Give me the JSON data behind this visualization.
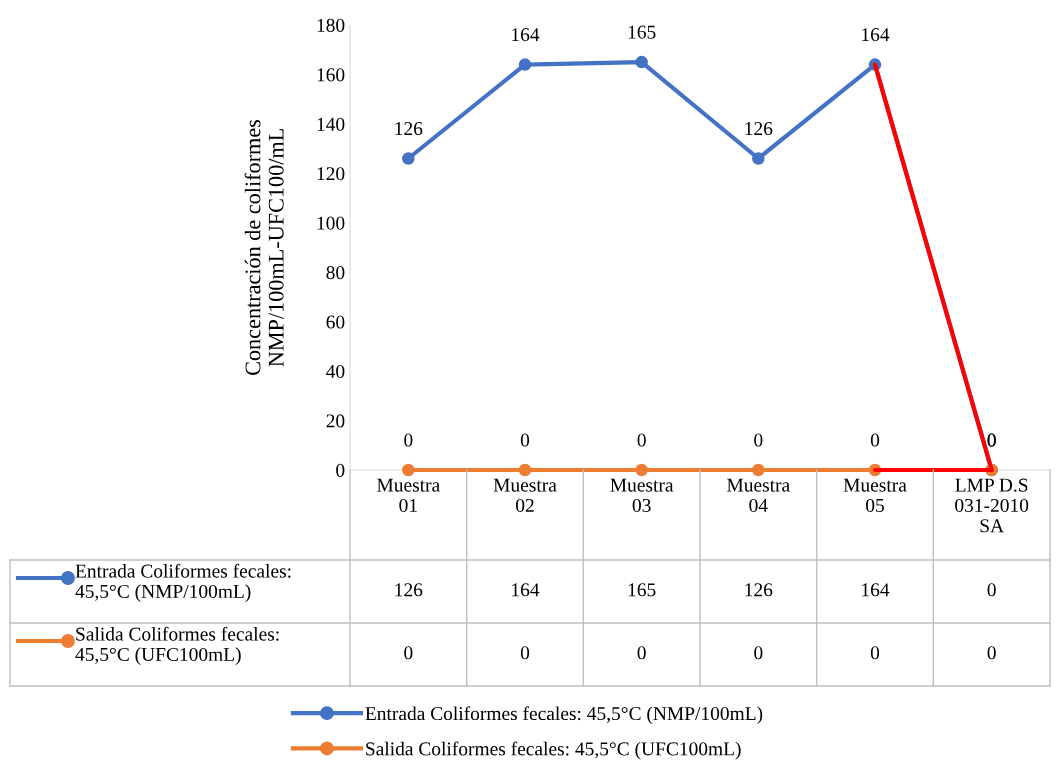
{
  "chart_data": {
    "type": "line",
    "ylabel": "Concentración de coliformes\nNMP/100mL-UFC100/mL",
    "categories": [
      "Muestra\n01",
      "Muestra\n02",
      "Muestra\n03",
      "Muestra\n04",
      "Muestra\n05",
      "LMP D.S\n031-2010\nSA"
    ],
    "series": [
      {
        "name": "Entrada Coliformes fecales: 45,5°C (NMP/100mL)",
        "color": "#4472c4",
        "values": [
          126,
          164,
          165,
          126,
          164,
          0
        ],
        "value_labels": [
          "126",
          "164",
          "165",
          "126",
          "164",
          "0"
        ]
      },
      {
        "name": "Salida Coliformes fecales: 45,5°C (UFC100mL)",
        "color": "#ed7d31",
        "values": [
          0,
          0,
          0,
          0,
          0,
          0
        ],
        "value_labels": [
          "0",
          "0",
          "0",
          "0",
          "0",
          "0"
        ]
      },
      {
        "color": "#ff0000",
        "values": [
          null,
          null,
          null,
          null,
          164,
          0
        ],
        "marker": "none"
      },
      {
        "color": "#ff0000",
        "values": [
          null,
          null,
          null,
          null,
          0,
          0
        ],
        "marker": "none"
      }
    ],
    "ylim": [
      0,
      180
    ],
    "yticks": [
      0,
      20,
      40,
      60,
      80,
      100,
      120,
      140,
      160,
      180
    ],
    "grid": false,
    "legend": "bottom",
    "marker": "circle"
  }
}
